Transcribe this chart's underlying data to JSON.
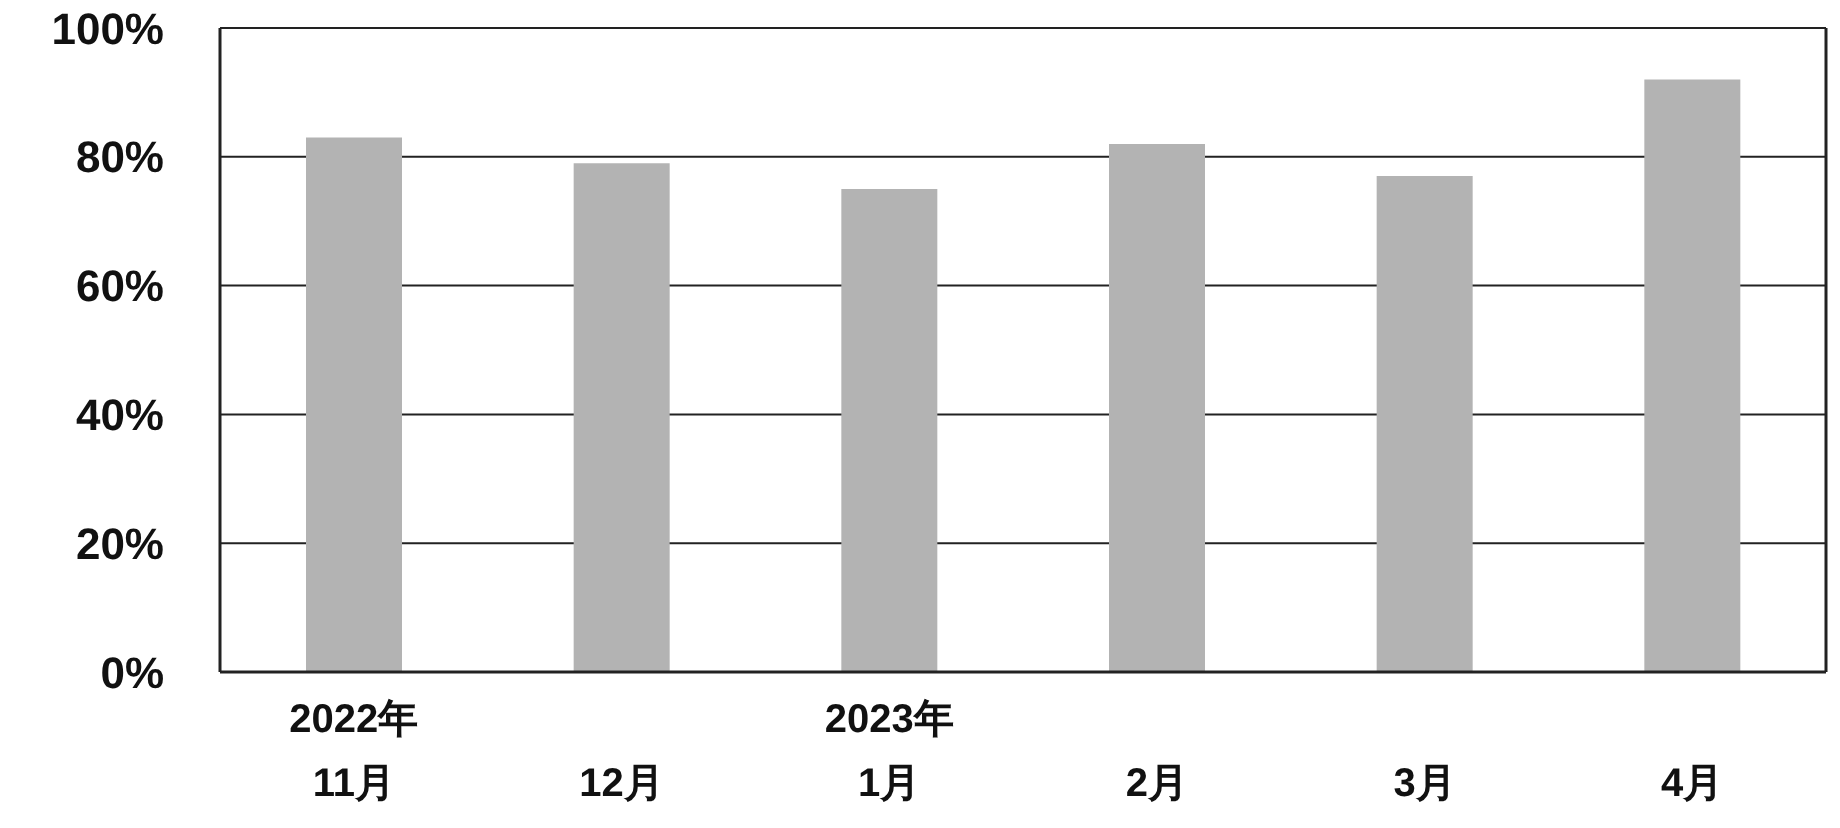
{
  "chart_data": {
    "type": "bar",
    "categories": [
      "2022年\n11月",
      "12月",
      "2023年\n1月",
      "2月",
      "3月",
      "4月"
    ],
    "values": [
      83,
      79,
      75,
      82,
      77,
      92
    ],
    "color": "#b3b3b3",
    "ylim": [
      0,
      100
    ],
    "yticks": [
      {
        "value": 0,
        "label": "0%"
      },
      {
        "value": 20,
        "label": "20%"
      },
      {
        "value": 40,
        "label": "40%"
      },
      {
        "value": 60,
        "label": "60%"
      },
      {
        "value": 80,
        "label": "80%"
      },
      {
        "value": 100,
        "label": "100%"
      }
    ],
    "grid": "y"
  }
}
